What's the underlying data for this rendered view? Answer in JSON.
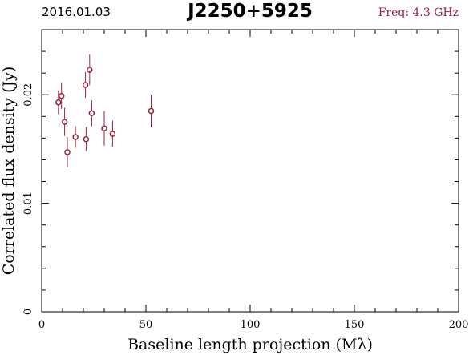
{
  "header": {
    "date": "2016.01.03",
    "source": "J2250+5925",
    "frequency": "Freq: 4.3 GHz"
  },
  "colors": {
    "data": "#a0203c",
    "axis": "#000000",
    "background": "#ffffff"
  },
  "chart_data": {
    "type": "scatter",
    "title": "J2250+5925",
    "xlabel": "Baseline length projection (Mλ)",
    "ylabel": "Correlated flux density (Jy)",
    "xlim": [
      0,
      200
    ],
    "ylim": [
      0,
      0.026
    ],
    "xticks": [
      0,
      50,
      100,
      150,
      200
    ],
    "xtick_labels": [
      "0",
      "50",
      "100",
      "150",
      "200"
    ],
    "yticks": [
      0,
      0.01,
      0.02
    ],
    "ytick_labels": [
      "0",
      "0.01",
      "0.02"
    ],
    "grid": false,
    "series": [
      {
        "marker": "open-circle",
        "error_bars": true,
        "points": [
          {
            "x": 8.0,
            "y": 0.0193,
            "err": 0.0011
          },
          {
            "x": 9.5,
            "y": 0.0199,
            "err": 0.0012
          },
          {
            "x": 11.0,
            "y": 0.0175,
            "err": 0.0013
          },
          {
            "x": 12.3,
            "y": 0.0147,
            "err": 0.0014
          },
          {
            "x": 16.2,
            "y": 0.0161,
            "err": 0.001
          },
          {
            "x": 21.0,
            "y": 0.0209,
            "err": 0.0012
          },
          {
            "x": 21.3,
            "y": 0.0159,
            "err": 0.0011
          },
          {
            "x": 23.0,
            "y": 0.0223,
            "err": 0.0014
          },
          {
            "x": 24.0,
            "y": 0.0183,
            "err": 0.0012
          },
          {
            "x": 30.0,
            "y": 0.0169,
            "err": 0.0016
          },
          {
            "x": 34.0,
            "y": 0.0164,
            "err": 0.0012
          },
          {
            "x": 52.5,
            "y": 0.0185,
            "err": 0.0015
          }
        ]
      }
    ]
  }
}
